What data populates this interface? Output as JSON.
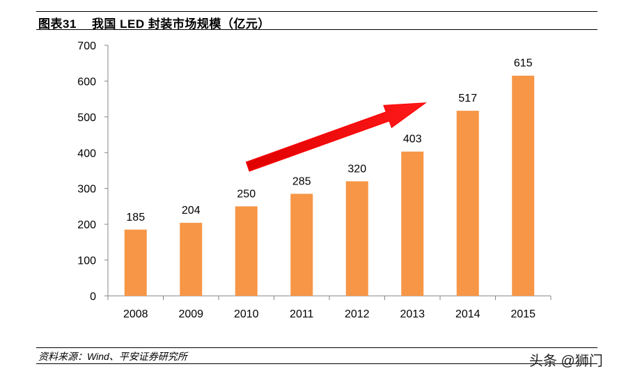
{
  "figure": {
    "number": "图表31",
    "title": "我国 LED 封装市场规模（亿元）"
  },
  "chart_data": {
    "type": "bar",
    "title": "我国 LED 封装市场规模（亿元）",
    "categories": [
      "2008",
      "2009",
      "2010",
      "2011",
      "2012",
      "2013",
      "2014",
      "2015"
    ],
    "values": [
      185,
      204,
      250,
      285,
      320,
      403,
      517,
      615
    ],
    "value_labels": [
      "185",
      "204",
      "250",
      "285",
      "320",
      "403",
      "517",
      "615"
    ],
    "ylim": [
      0,
      700
    ],
    "yticks": [
      "0",
      "100",
      "200",
      "300",
      "400",
      "500",
      "600",
      "700"
    ],
    "xlabel": "",
    "ylabel": "",
    "bar_color": "#F79646",
    "grid": false,
    "legend": "none",
    "annotation": {
      "type": "trend-arrow",
      "color": "#FF0000",
      "direction": "up-right",
      "from_category": "2010",
      "to_category": "2013"
    }
  },
  "footer": {
    "source": "资料来源：Wind、平安证券研究所",
    "watermark": "头条 @狮门"
  }
}
